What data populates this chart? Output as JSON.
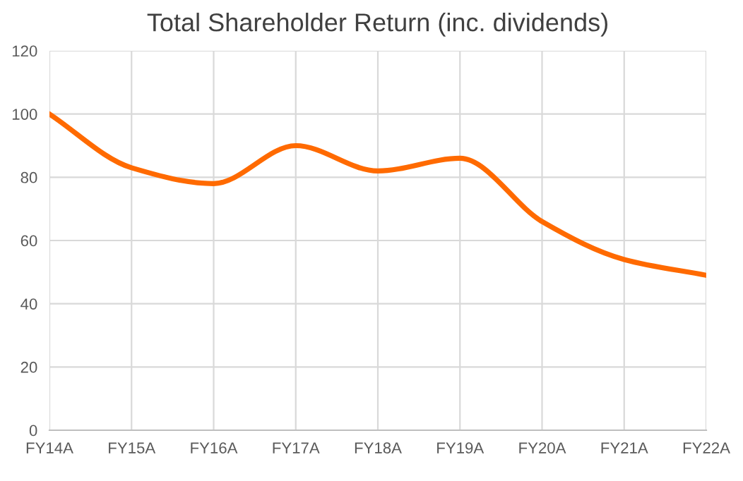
{
  "chart_data": {
    "type": "line",
    "title": "Total Shareholder Return (inc. dividends)",
    "categories": [
      "FY14A",
      "FY15A",
      "FY16A",
      "FY17A",
      "FY18A",
      "FY19A",
      "FY20A",
      "FY21A",
      "FY22A"
    ],
    "series": [
      {
        "color": "#ff6a00",
        "values": [
          100,
          83,
          78,
          90,
          82,
          86,
          66,
          54,
          49
        ]
      }
    ],
    "ylim": [
      0,
      120
    ],
    "yticks": [
      0,
      20,
      40,
      60,
      80,
      100,
      120
    ],
    "grid": true,
    "legend": false,
    "marker": "none",
    "line_style": "solid"
  }
}
